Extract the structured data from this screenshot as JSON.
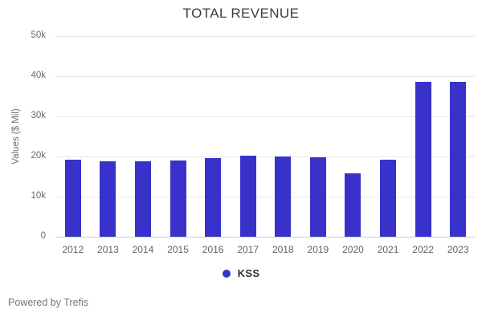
{
  "title": "TOTAL REVENUE",
  "y_axis": {
    "title": "Values ($ Mil)"
  },
  "legend": {
    "label": "KSS"
  },
  "footer": {
    "powered_by": "Powered by Trefis"
  },
  "colors": {
    "bar": "#3832cb",
    "legend_dot": "#3832cb",
    "gridline": "#e8e8e8",
    "baseline": "#ccd3e6",
    "title_text": "#3d3d3d",
    "axis_text": "#6b6b6b"
  },
  "chart_data": {
    "type": "bar",
    "title": "TOTAL REVENUE",
    "categories": [
      "2012",
      "2013",
      "2014",
      "2015",
      "2016",
      "2017",
      "2018",
      "2019",
      "2020",
      "2021",
      "2022",
      "2023"
    ],
    "series": [
      {
        "name": "KSS",
        "values": [
          19200,
          18800,
          18800,
          19000,
          19600,
          20200,
          20100,
          19800,
          15800,
          19300,
          38600,
          38700
        ]
      }
    ],
    "xlabel": "",
    "ylabel": "Values ($ Mil)",
    "ylim": [
      0,
      50000
    ],
    "yticks": [
      {
        "value": 0,
        "label": "0"
      },
      {
        "value": 10000,
        "label": "10k"
      },
      {
        "value": 20000,
        "label": "20k"
      },
      {
        "value": 30000,
        "label": "30k"
      },
      {
        "value": 40000,
        "label": "40k"
      },
      {
        "value": 50000,
        "label": "50k"
      }
    ],
    "grid": true,
    "legend_position": "bottom",
    "bar_color": "#3832cb"
  }
}
